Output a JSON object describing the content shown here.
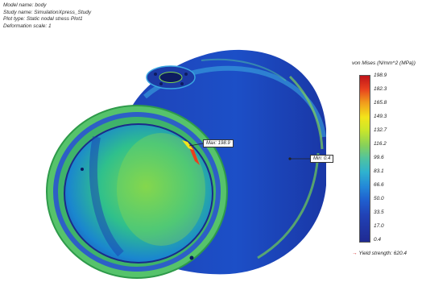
{
  "header": {
    "model_name": "Model name: body",
    "study_name": "Study name: SimulationXpress_Study",
    "plot_type": "Plot type: Static nodal stress Plot1",
    "deformation_scale": "Deformation scale: 1"
  },
  "legend": {
    "title": "von Mises (N/mm^2 (MPa))",
    "ticks": [
      "198.9",
      "182.3",
      "165.8",
      "149.3",
      "132.7",
      "116.2",
      "99.6",
      "83.1",
      "66.6",
      "50.0",
      "33.5",
      "17.0",
      "0.4"
    ],
    "yield_label": "Yield strength: 620.4",
    "colors": [
      "#c0141a",
      "#f3e51a",
      "#86d15a",
      "#2fb2cf",
      "#1f2a92"
    ]
  },
  "probes": {
    "max_label": "Max: 198.9",
    "min_label": "Min: 0.4"
  }
}
